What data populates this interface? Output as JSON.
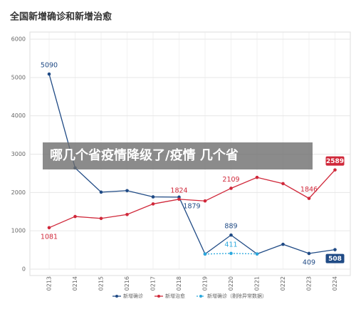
{
  "chart_data": {
    "type": "line",
    "title": "全国新增确诊和新增治愈",
    "categories": [
      "0213",
      "0214",
      "0215",
      "0216",
      "0217",
      "0218",
      "0219",
      "0220",
      "0221",
      "0222",
      "0223",
      "0224"
    ],
    "series": [
      {
        "name": "新增确诊",
        "color": "#1f4a85",
        "values": [
          5090,
          2641,
          2009,
          2048,
          1886,
          1879,
          394,
          889,
          397,
          648,
          409,
          508
        ],
        "value_labels": [
          "5090",
          null,
          null,
          null,
          null,
          "1879",
          null,
          "889",
          null,
          null,
          "409",
          "508"
        ]
      },
      {
        "name": "新增治愈",
        "color": "#d0283a",
        "values": [
          1081,
          1373,
          1323,
          1425,
          1701,
          1824,
          1779,
          2109,
          2393,
          2231,
          1846,
          2589
        ],
        "value_labels": [
          "1081",
          null,
          null,
          null,
          null,
          "1824",
          null,
          "2109",
          null,
          null,
          "1846",
          "2589"
        ]
      },
      {
        "name": "新增确诊（剔除异常数据）",
        "color": "#2aa8de",
        "dashed": true,
        "values": [
          null,
          null,
          null,
          null,
          null,
          null,
          394,
          411,
          397,
          null,
          null,
          null
        ],
        "value_labels": [
          null,
          null,
          null,
          null,
          null,
          null,
          null,
          "411",
          null,
          null,
          null,
          null
        ]
      }
    ],
    "ylim": [
      0,
      6000
    ],
    "yticks": [
      0,
      1000,
      2000,
      3000,
      4000,
      5000,
      6000
    ],
    "grid": true,
    "overlay_text": "哪几个省疫情降级了/疫情 几个省"
  }
}
